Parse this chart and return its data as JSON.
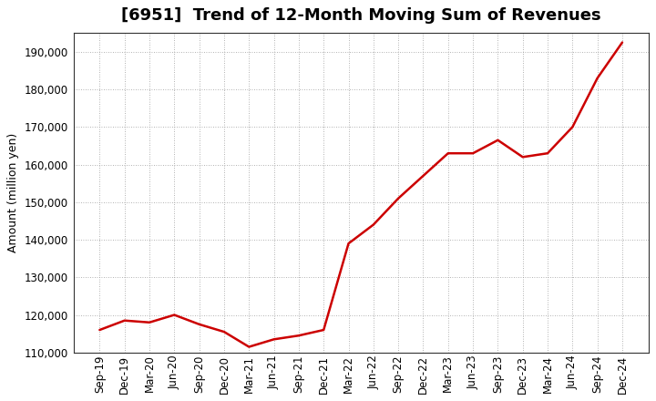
{
  "title": "[6951]  Trend of 12-Month Moving Sum of Revenues",
  "ylabel": "Amount (million yen)",
  "background_color": "#ffffff",
  "plot_bg_color": "#ffffff",
  "line_color": "#cc0000",
  "grid_color": "#999999",
  "border_color": "#333333",
  "ylim": [
    110000,
    195000
  ],
  "yticks": [
    110000,
    120000,
    130000,
    140000,
    150000,
    160000,
    170000,
    180000,
    190000
  ],
  "x_labels": [
    "Sep-19",
    "Dec-19",
    "Mar-20",
    "Jun-20",
    "Sep-20",
    "Dec-20",
    "Mar-21",
    "Jun-21",
    "Sep-21",
    "Dec-21",
    "Mar-22",
    "Jun-22",
    "Sep-22",
    "Dec-22",
    "Mar-23",
    "Jun-23",
    "Sep-23",
    "Dec-23",
    "Mar-24",
    "Jun-24",
    "Sep-24",
    "Dec-24"
  ],
  "values": [
    116000,
    118500,
    118000,
    120000,
    117500,
    115500,
    111500,
    113500,
    114500,
    116000,
    139000,
    144000,
    151000,
    157000,
    163000,
    163000,
    166500,
    162000,
    163000,
    170000,
    183000,
    192500
  ],
  "title_fontsize": 13,
  "tick_fontsize": 8.5,
  "ylabel_fontsize": 9,
  "line_width": 1.8
}
